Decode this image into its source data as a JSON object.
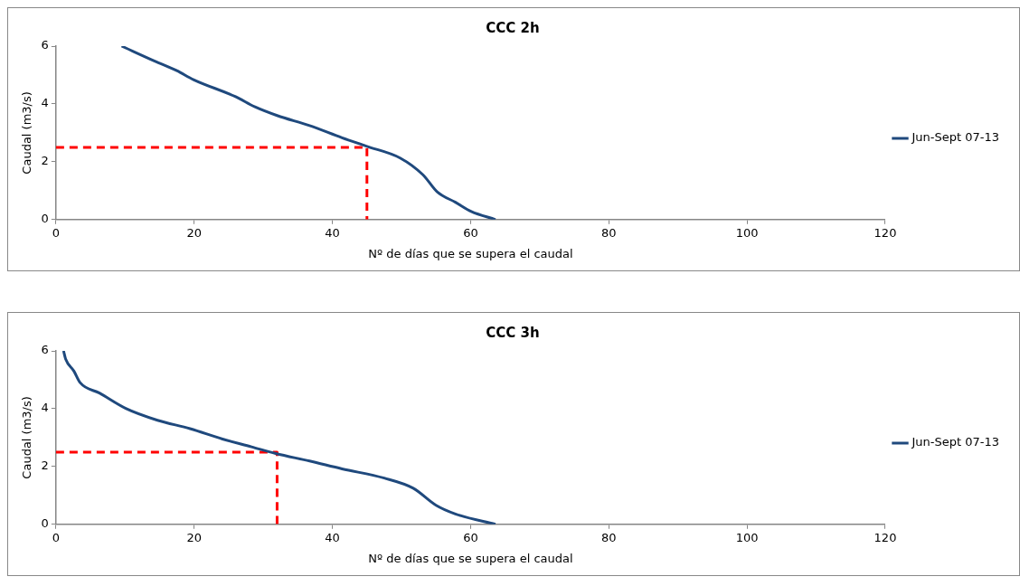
{
  "chart_data": [
    {
      "type": "line",
      "title": "CCC 2h",
      "xlabel": "Nº de días que se supera el caudal",
      "ylabel": "Caudal (m3/s)",
      "xlim": [
        0,
        120
      ],
      "xticks": [
        0,
        20,
        40,
        60,
        80,
        100,
        120
      ],
      "ylim": [
        0,
        6
      ],
      "yticks": [
        0,
        2,
        4,
        6
      ],
      "grid": false,
      "legend": "right",
      "marker": "none",
      "series": [
        {
          "name": "Jun-Sept 07-13",
          "color": "#1f497d",
          "x": [
            9.5,
            14.3,
            17.5,
            19.9,
            26,
            28.8,
            32,
            36.7,
            41.4,
            44.9,
            49.8,
            53.1,
            55.2,
            57.8,
            60.1,
            63.6
          ],
          "values": [
            6,
            5.48,
            5.15,
            4.84,
            4.25,
            3.9,
            3.6,
            3.25,
            2.83,
            2.54,
            2.13,
            1.55,
            0.95,
            0.6,
            0.28,
            0
          ]
        },
        {
          "color": "#ff0000",
          "line_style": "dashed",
          "x": [
            0,
            45,
            45
          ],
          "values": [
            2.5,
            2.5,
            0
          ]
        }
      ]
    },
    {
      "type": "line",
      "title": "CCC 3h",
      "xlabel": "Nº de días que se supera el caudal",
      "ylabel": "Caudal (m3/s)",
      "xlim": [
        0,
        120
      ],
      "xticks": [
        0,
        20,
        40,
        60,
        80,
        100,
        120
      ],
      "ylim": [
        0,
        6
      ],
      "yticks": [
        0,
        2,
        4,
        6
      ],
      "grid": false,
      "legend": "right",
      "marker": "none",
      "series": [
        {
          "name": "Jun-Sept 07-13",
          "color": "#1f497d",
          "x": [
            1.1,
            1.4,
            2.6,
            3.5,
            6.3,
            10.1,
            14.7,
            19.4,
            24.1,
            28.3,
            31.8,
            36.7,
            41.4,
            47.5,
            51.7,
            55,
            57.8,
            63.6
          ],
          "values": [
            6,
            5.72,
            5.3,
            4.9,
            4.54,
            4.01,
            3.6,
            3.31,
            2.95,
            2.68,
            2.45,
            2.19,
            1.92,
            1.6,
            1.25,
            0.66,
            0.36,
            0
          ]
        },
        {
          "color": "#ff0000",
          "line_style": "dashed",
          "x": [
            0,
            32,
            32
          ],
          "values": [
            2.5,
            2.5,
            0
          ]
        }
      ]
    }
  ]
}
